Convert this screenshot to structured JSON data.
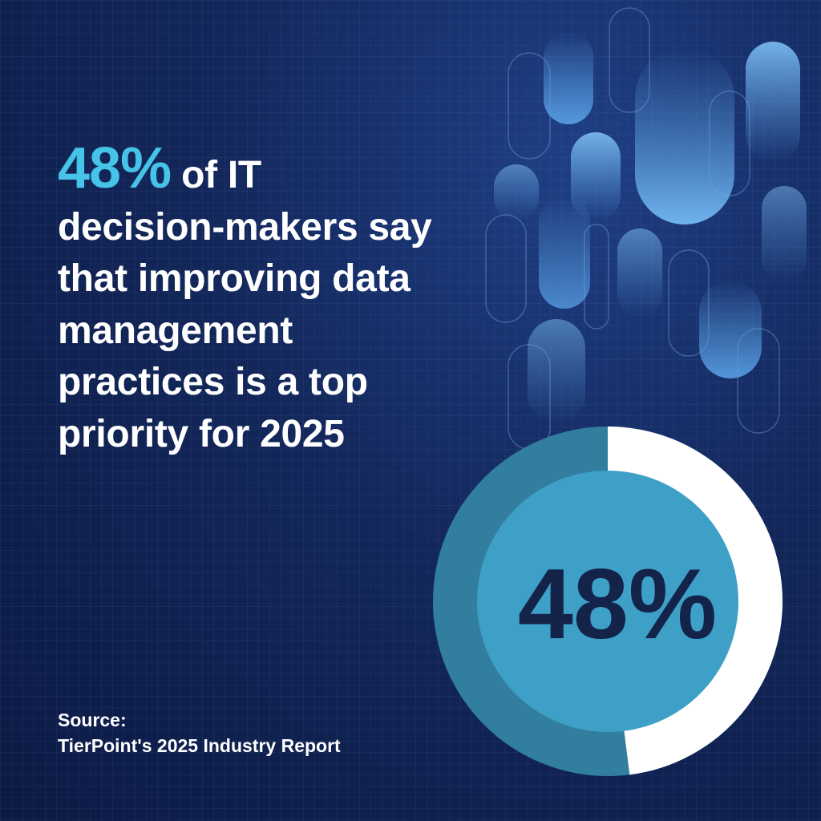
{
  "headline": {
    "highlight": "48%",
    "text": " of IT decision-makers say that improving data management practices is a top priority for 2025"
  },
  "source": {
    "label": "Source:",
    "name": "TierPoint's 2025 Industry Report"
  },
  "chart_data": {
    "type": "pie",
    "style": "donut",
    "value_percent": 48,
    "center_label": "48%",
    "colors": {
      "highlighted_slice": "#ffffff",
      "remaining_slice": "#327e9e",
      "inner_disc": "#3ea0c6",
      "label": "#14234a"
    }
  }
}
